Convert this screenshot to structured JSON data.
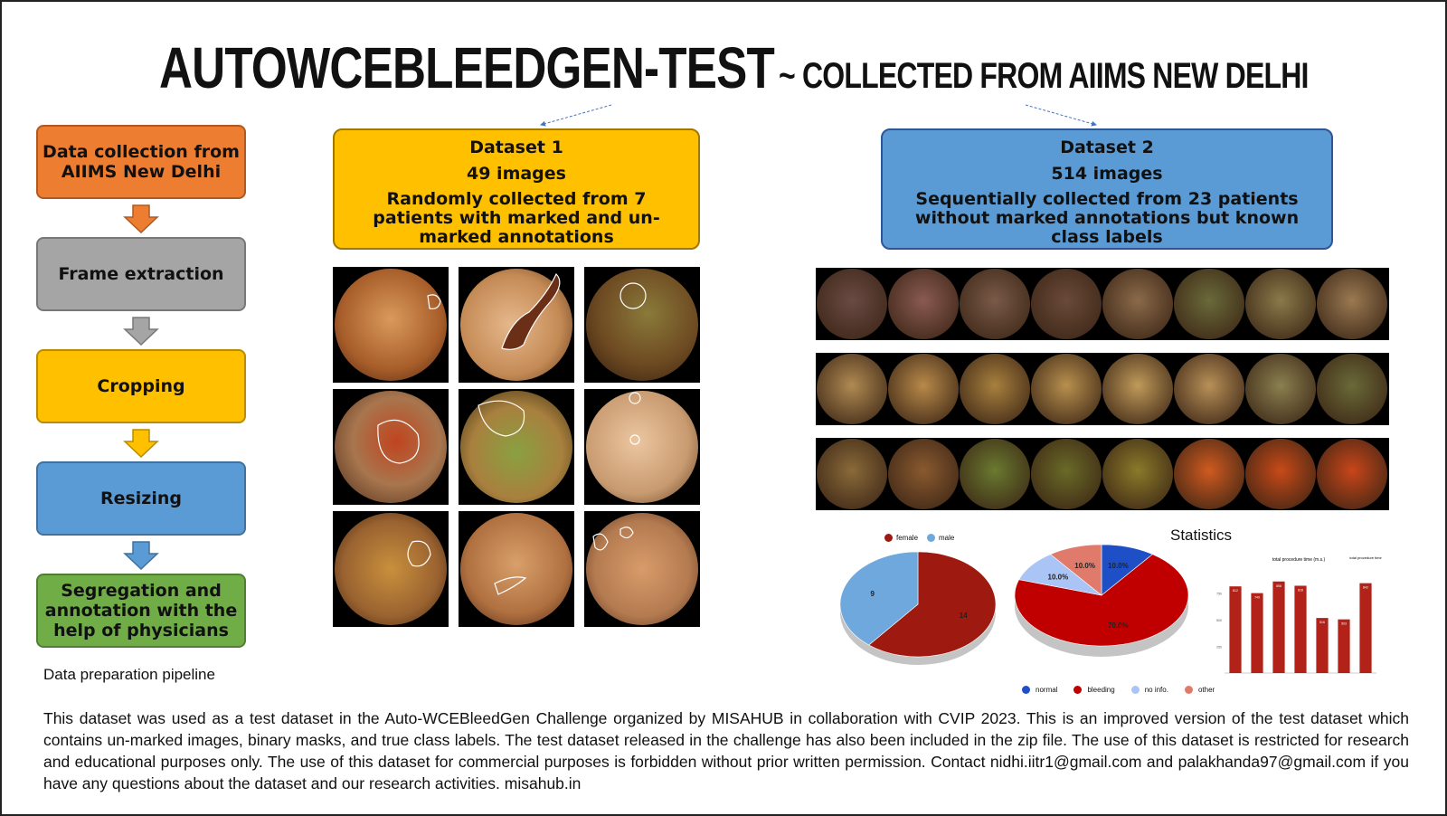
{
  "title": {
    "main": "AUTOWCEBLEEDGEN-TEST",
    "sub": "~ COLLECTED FROM AIIMS NEW DELHI"
  },
  "pipeline": {
    "steps": [
      "Data collection from AIIMS New Delhi",
      "Frame extraction",
      "Cropping",
      "Resizing",
      "Segregation and annotation with the help of physicians"
    ],
    "caption": "Data preparation pipeline",
    "colors": [
      "#ED7D31",
      "#A5A5A5",
      "#FFC000",
      "#5B9BD5",
      "#70AD47"
    ]
  },
  "dataset1": {
    "name": "Dataset 1",
    "count": "49 images",
    "desc": "Randomly collected from 7 patients with marked and un-marked annotations"
  },
  "dataset2": {
    "name": "Dataset 2",
    "count": "514 images",
    "desc": "Sequentially collected from 23 patients without marked annotations but known class labels"
  },
  "statistics": {
    "title": "Statistics",
    "gender_legend": [
      "female",
      "male"
    ],
    "class_legend": [
      "normal",
      "bleeding",
      "no info.",
      "other"
    ],
    "bar_title": "total procedure time (m.s.)",
    "bar_legend": "total procedure time"
  },
  "chart_data": [
    {
      "type": "pie",
      "labels": [
        "female",
        "male"
      ],
      "values": [
        14,
        9
      ],
      "colors": [
        "#9E1A10",
        "#6FA8DC"
      ]
    },
    {
      "type": "pie",
      "labels": [
        "normal",
        "bleeding",
        "no info.",
        "other"
      ],
      "values": [
        10.0,
        70.0,
        10.0,
        10.0
      ],
      "value_labels": [
        "10.0%",
        "70.0%",
        "10.0%",
        "10.0%"
      ],
      "colors": [
        "#1F4FC7",
        "#C00000",
        "#A9C4F5",
        "#E07B6B"
      ]
    },
    {
      "type": "bar",
      "title": "total procedure time (m.s.)",
      "legend": "total procedure time",
      "values": [
        812,
        749,
        858,
        818,
        516,
        503,
        842
      ],
      "ylim": [
        0,
        1000
      ],
      "color": "#B22218"
    }
  ],
  "body_text": "This dataset was used as a test dataset in the Auto-WCEBleedGen Challenge organized by MISAHUB in collaboration with CVIP 2023. This is an improved version of the test dataset which contains un-marked images, binary masks, and true class labels. The test dataset released in the challenge has also been included in the zip file. The use of this dataset is restricted for research and educational purposes only. The use of this dataset for commercial purposes is forbidden without prior written permission. Contact nidhi.iitr1@gmail.com and palakhanda97@gmail.com if you have any questions about the dataset and our research activities. misahub.in"
}
